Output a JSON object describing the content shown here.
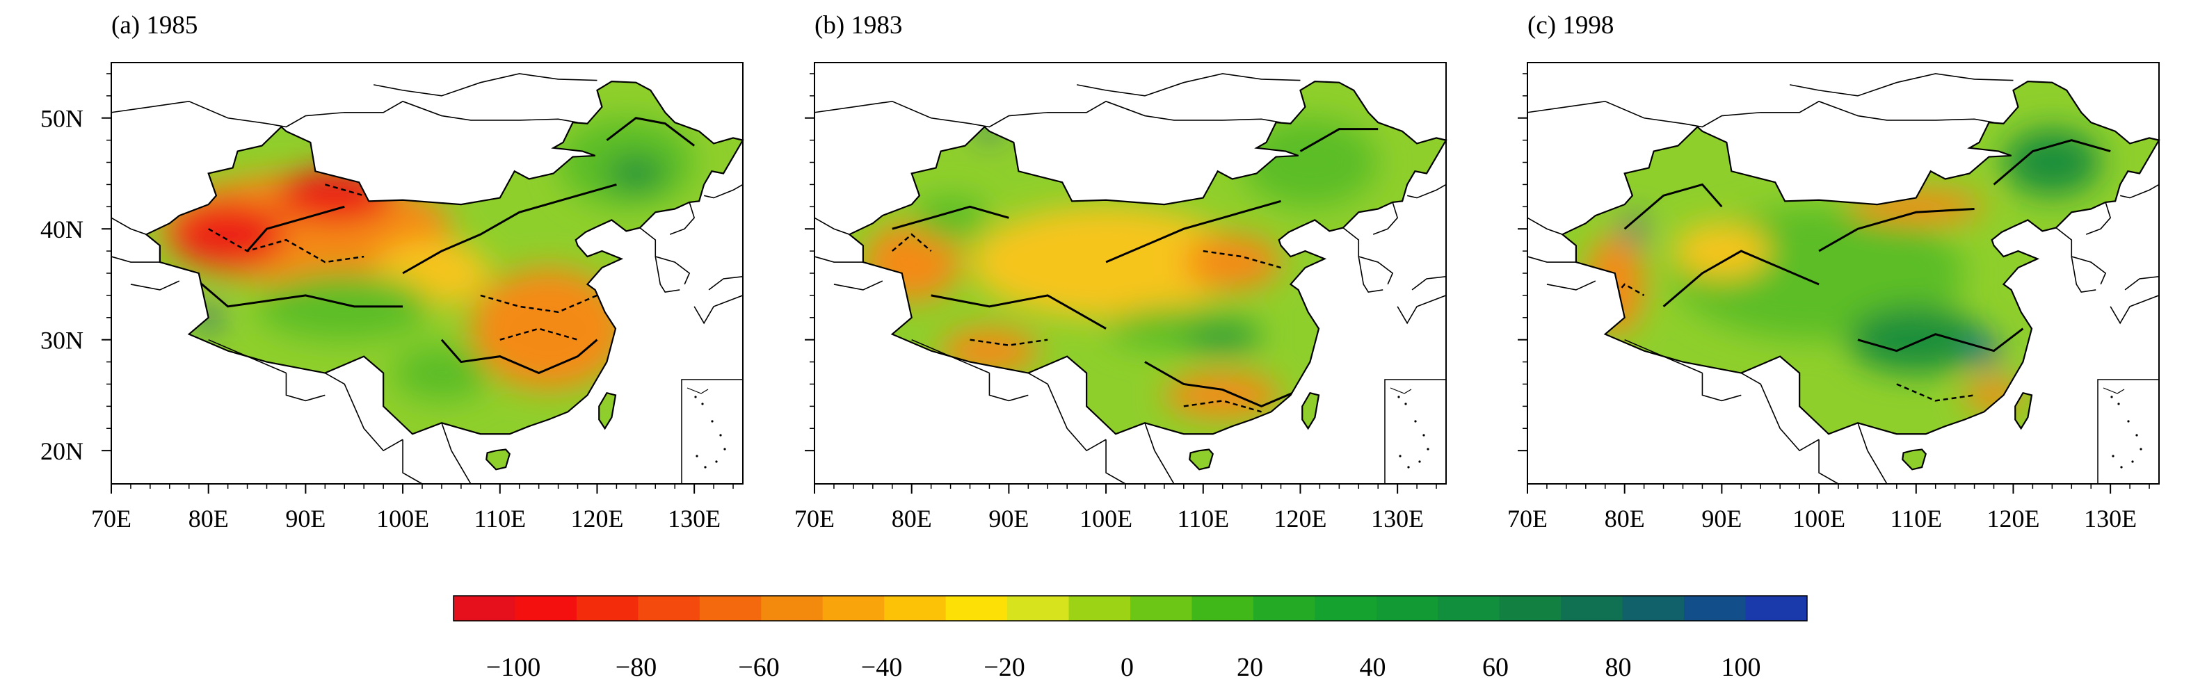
{
  "panels": [
    {
      "label": "(a) 1985",
      "regions": [
        {
          "type": "orange",
          "lon": 90,
          "lat": 40,
          "w": 30,
          "h": 10
        },
        {
          "type": "red",
          "lon": 82,
          "lat": 39.5,
          "w": 12,
          "h": 6
        },
        {
          "type": "red",
          "lon": 93,
          "lat": 43,
          "w": 12,
          "h": 5
        },
        {
          "type": "orange",
          "lon": 115,
          "lat": 31,
          "w": 16,
          "h": 11
        },
        {
          "type": "yellow",
          "lon": 103,
          "lat": 36,
          "w": 12,
          "h": 6
        },
        {
          "type": "green",
          "lon": 94,
          "lat": 33,
          "w": 18,
          "h": 6
        },
        {
          "type": "green",
          "lon": 123,
          "lat": 46,
          "w": 14,
          "h": 8
        },
        {
          "type": "darkgreen",
          "lon": 124,
          "lat": 45,
          "w": 6,
          "h": 3
        },
        {
          "type": "green",
          "lon": 104,
          "lat": 27,
          "w": 10,
          "h": 5
        },
        {
          "type": "blue",
          "lon": 80,
          "lat": 32,
          "w": 2,
          "h": 2
        }
      ]
    },
    {
      "label": "(b) 1983",
      "regions": [
        {
          "type": "yellow",
          "lon": 100,
          "lat": 37,
          "w": 28,
          "h": 10
        },
        {
          "type": "orange",
          "lon": 80,
          "lat": 37,
          "w": 10,
          "h": 7
        },
        {
          "type": "orange",
          "lon": 88,
          "lat": 29,
          "w": 10,
          "h": 4
        },
        {
          "type": "orange",
          "lon": 113,
          "lat": 37,
          "w": 10,
          "h": 5
        },
        {
          "type": "orange",
          "lon": 112,
          "lat": 25,
          "w": 12,
          "h": 4
        },
        {
          "type": "green",
          "lon": 108,
          "lat": 31,
          "w": 16,
          "h": 4
        },
        {
          "type": "darkgreen",
          "lon": 112,
          "lat": 30,
          "w": 8,
          "h": 2
        },
        {
          "type": "green",
          "lon": 121,
          "lat": 46,
          "w": 14,
          "h": 8
        },
        {
          "type": "green",
          "lon": 84,
          "lat": 41,
          "w": 8,
          "h": 4
        },
        {
          "type": "blue",
          "lon": 88,
          "lat": 49,
          "w": 2,
          "h": 1.5
        }
      ]
    },
    {
      "label": "(c) 1998",
      "regions": [
        {
          "type": "green",
          "lon": 100,
          "lat": 36,
          "w": 30,
          "h": 12
        },
        {
          "type": "orange",
          "lon": 79,
          "lat": 35,
          "w": 6,
          "h": 9
        },
        {
          "type": "orange",
          "lon": 110,
          "lat": 42,
          "w": 14,
          "h": 3
        },
        {
          "type": "yellow",
          "lon": 90,
          "lat": 38,
          "w": 10,
          "h": 5
        },
        {
          "type": "darkgreen",
          "lon": 110,
          "lat": 30,
          "w": 14,
          "h": 6
        },
        {
          "type": "blue",
          "lon": 117,
          "lat": 29,
          "w": 3,
          "h": 2
        },
        {
          "type": "blue",
          "lon": 125,
          "lat": 47,
          "w": 6,
          "h": 3
        },
        {
          "type": "darkgreen",
          "lon": 124,
          "lat": 46,
          "w": 10,
          "h": 6
        },
        {
          "type": "orange",
          "lon": 118,
          "lat": 25,
          "w": 6,
          "h": 3
        },
        {
          "type": "blue",
          "lon": 81,
          "lat": 40,
          "w": 2,
          "h": 2
        }
      ]
    }
  ],
  "axes": {
    "lon_ticks": [
      "70E",
      "80E",
      "90E",
      "100E",
      "110E",
      "120E",
      "130E"
    ],
    "lat_ticks": [
      "50N",
      "40N",
      "30N",
      "20N"
    ]
  },
  "colorbar": {
    "colors": [
      "#e5101c",
      "#f4100e",
      "#f32c0c",
      "#f44a0d",
      "#f4680e",
      "#f48a0d",
      "#f8a40a",
      "#fbc208",
      "#fde006",
      "#d6e31d",
      "#9cd415",
      "#6cc616",
      "#41b819",
      "#25aa26",
      "#16a22e",
      "#129a34",
      "#118f3c",
      "#128040",
      "#0f7152",
      "#11616a",
      "#124e8a",
      "#1a3aab"
    ],
    "tick_labels": [
      "−100",
      "−80",
      "−60",
      "−40",
      "−20",
      "0",
      "20",
      "40",
      "60",
      "80",
      "100"
    ]
  }
}
